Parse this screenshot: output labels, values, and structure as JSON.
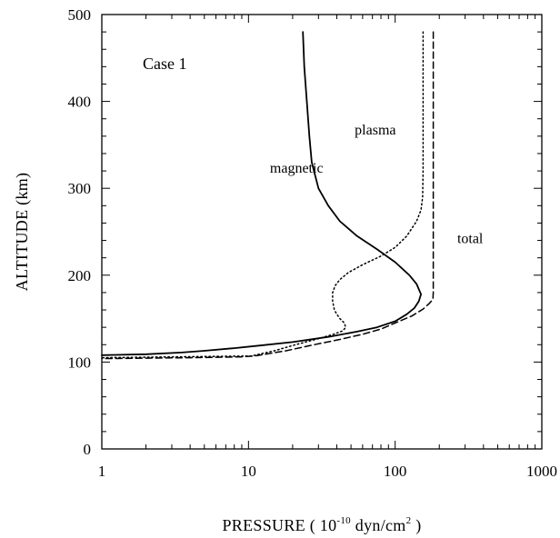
{
  "chart_data": {
    "type": "line",
    "title": "",
    "panel_label": "Case 1",
    "xlabel": {
      "main": "PRESSURE ( 10",
      "exp": "-10",
      "unit": " dyn/cm",
      "unit_exp": "2",
      "close": " )"
    },
    "ylabel": "ALTITUDE (km)",
    "xscale": "log",
    "xlim": [
      1,
      1000
    ],
    "ylim": [
      0,
      500
    ],
    "xticks": [
      {
        "value": 1,
        "label": "1"
      },
      {
        "value": 10,
        "label": "10"
      },
      {
        "value": 100,
        "label": "100"
      },
      {
        "value": 1000,
        "label": "1000"
      }
    ],
    "yticks": [
      {
        "value": 0,
        "label": "0"
      },
      {
        "value": 100,
        "label": "100"
      },
      {
        "value": 200,
        "label": "200"
      },
      {
        "value": 300,
        "label": "300"
      },
      {
        "value": 400,
        "label": "400"
      },
      {
        "value": 500,
        "label": "500"
      }
    ],
    "grid": false,
    "series": [
      {
        "name": "magnetic",
        "style": "solid",
        "color": "#000000",
        "points": [
          [
            23.5,
            480
          ],
          [
            24,
            440
          ],
          [
            25,
            400
          ],
          [
            26,
            360
          ],
          [
            27,
            330
          ],
          [
            30,
            300
          ],
          [
            35,
            280
          ],
          [
            42,
            262
          ],
          [
            55,
            245
          ],
          [
            75,
            230
          ],
          [
            100,
            215
          ],
          [
            125,
            200
          ],
          [
            140,
            190
          ],
          [
            150,
            178
          ],
          [
            145,
            170
          ],
          [
            135,
            162
          ],
          [
            120,
            155
          ],
          [
            100,
            147
          ],
          [
            75,
            140
          ],
          [
            55,
            135
          ],
          [
            35,
            129
          ],
          [
            20,
            123
          ],
          [
            12,
            119
          ],
          [
            8,
            116
          ],
          [
            5,
            113
          ],
          [
            3.5,
            111
          ],
          [
            2,
            109
          ],
          [
            1,
            108
          ]
        ]
      },
      {
        "name": "plasma",
        "style": "dotted",
        "color": "#000000",
        "points": [
          [
            155,
            480
          ],
          [
            155,
            440
          ],
          [
            155,
            400
          ],
          [
            155,
            360
          ],
          [
            155,
            320
          ],
          [
            154,
            290
          ],
          [
            150,
            275
          ],
          [
            140,
            262
          ],
          [
            120,
            245
          ],
          [
            100,
            232
          ],
          [
            80,
            222
          ],
          [
            60,
            212
          ],
          [
            48,
            203
          ],
          [
            42,
            195
          ],
          [
            39,
            188
          ],
          [
            37.5,
            180
          ],
          [
            37.5,
            170
          ],
          [
            38.5,
            160
          ],
          [
            40,
            155
          ],
          [
            42,
            150
          ],
          [
            45,
            145
          ],
          [
            46,
            140
          ],
          [
            44,
            136
          ],
          [
            38,
            132
          ],
          [
            30,
            127
          ],
          [
            20,
            119
          ],
          [
            15,
            113
          ],
          [
            10.5,
            107
          ],
          [
            1,
            105
          ]
        ]
      },
      {
        "name": "total",
        "style": "dashed",
        "color": "#000000",
        "points": [
          [
            182,
            480
          ],
          [
            182,
            440
          ],
          [
            182,
            400
          ],
          [
            182,
            350
          ],
          [
            182,
            300
          ],
          [
            182,
            250
          ],
          [
            182,
            200
          ],
          [
            182,
            180
          ],
          [
            181,
            172
          ],
          [
            170,
            167
          ],
          [
            155,
            161
          ],
          [
            130,
            153
          ],
          [
            100,
            145
          ],
          [
            80,
            138
          ],
          [
            60,
            132
          ],
          [
            42,
            126
          ],
          [
            28,
            120
          ],
          [
            18,
            113
          ],
          [
            11,
            107
          ],
          [
            9,
            106
          ],
          [
            4,
            105
          ],
          [
            1,
            104
          ]
        ]
      }
    ],
    "annotations": [
      {
        "text": "magnetic",
        "for": "magnetic",
        "x": 14,
        "y": 318
      },
      {
        "text": "plasma",
        "for": "plasma",
        "x": 53,
        "y": 362
      },
      {
        "text": "total",
        "for": "total",
        "x": 265,
        "y": 237
      }
    ]
  }
}
